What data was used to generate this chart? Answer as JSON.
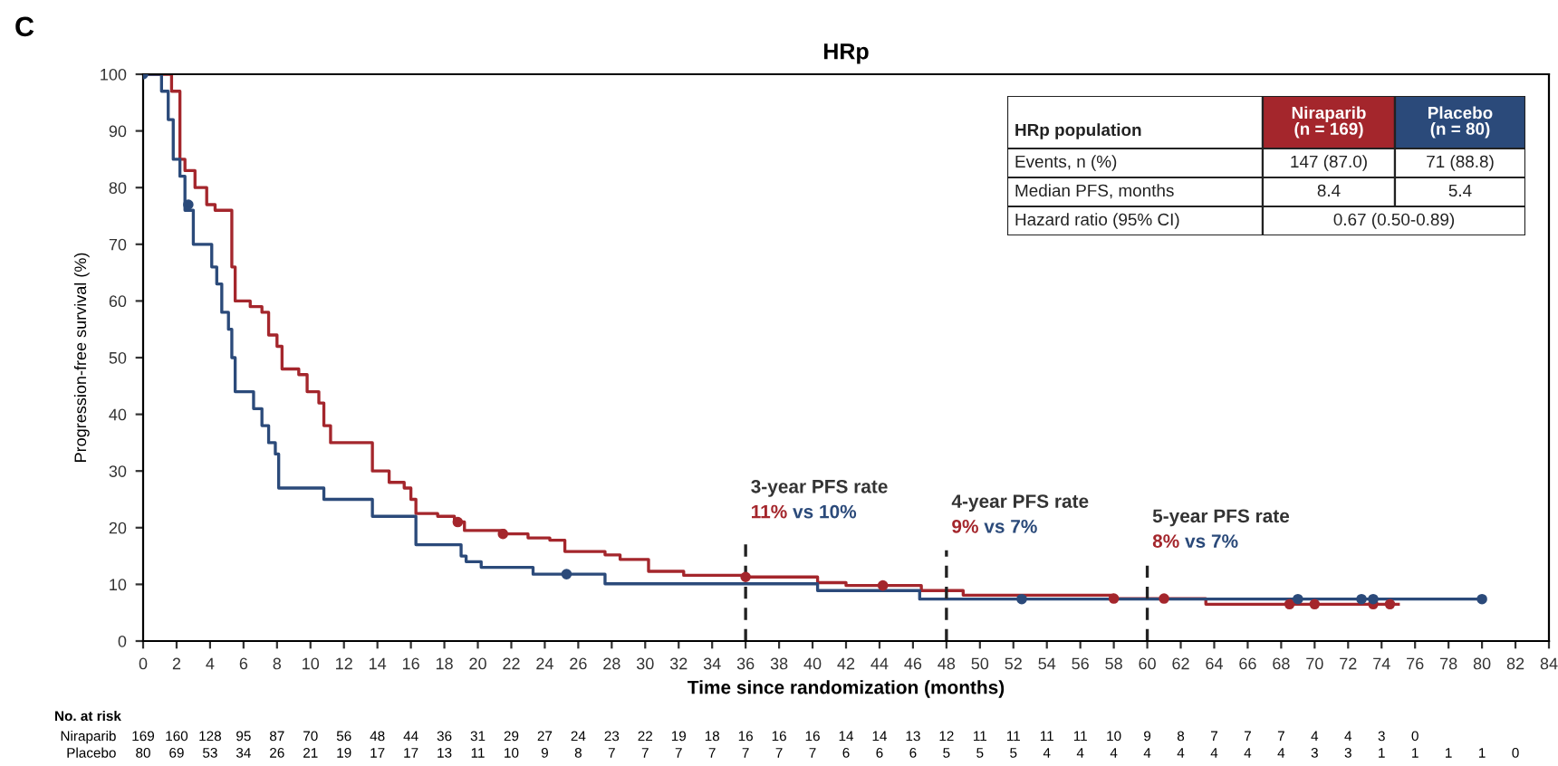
{
  "chart_data": [
    {
      "type": "step",
      "title": "HRp",
      "xlabel": "Time since randomization (months)",
      "ylabel": "Progression-free survival (%)",
      "xlim": [
        0,
        84
      ],
      "xticks": [
        0,
        2,
        4,
        6,
        8,
        10,
        12,
        14,
        16,
        18,
        20,
        22,
        24,
        26,
        28,
        30,
        32,
        34,
        36,
        38,
        40,
        42,
        44,
        46,
        48,
        50,
        52,
        54,
        56,
        58,
        60,
        62,
        64,
        66,
        68,
        70,
        72,
        74,
        76,
        78,
        80,
        82,
        84
      ],
      "ylim": [
        0,
        100
      ],
      "yticks": [
        0,
        10,
        20,
        30,
        40,
        50,
        60,
        70,
        80,
        90,
        100
      ],
      "series": [
        {
          "color": "#a4262c",
          "x": [
            0,
            1.7,
            2.2,
            2.5,
            3.1,
            3.8,
            4.3,
            5.1,
            5.3,
            5.5,
            6.4,
            7.1,
            7.5,
            8.0,
            8.3,
            9.3,
            9.8,
            10.5,
            10.8,
            11.2,
            13.7,
            14.7,
            15.6,
            16.0,
            16.3,
            17.6,
            18.6,
            19.2,
            21.6,
            23.0,
            24.3,
            25.2,
            27.6,
            28.5,
            30.2,
            32.3,
            36.0,
            40.3,
            42.0,
            46.5,
            49.0,
            58.0,
            63.5,
            75
          ],
          "values": [
            100,
            97,
            85,
            83,
            80,
            77,
            76,
            76,
            66,
            60,
            59,
            58,
            54,
            52,
            48,
            47,
            44,
            42,
            38,
            35,
            30,
            28,
            27,
            25,
            22.5,
            22,
            21,
            19.5,
            18.9,
            18.2,
            17.8,
            15.8,
            15.2,
            14.4,
            12.3,
            11.6,
            11.3,
            10.3,
            9.8,
            8.9,
            8.1,
            7.5,
            6.5,
            6.5
          ]
        },
        {
          "color": "#2b4a7a",
          "x": [
            0,
            1.1,
            1.5,
            1.8,
            2.2,
            2.5,
            2.7,
            3.0,
            4.1,
            4.4,
            4.7,
            5.1,
            5.3,
            5.5,
            6.6,
            7.1,
            7.5,
            7.9,
            8.1,
            10.8,
            13.7,
            16.3,
            19.0,
            19.3,
            20.2,
            23.3,
            27.6,
            40.3,
            46.4,
            80
          ],
          "values": [
            100,
            97,
            92,
            85,
            82,
            76,
            76,
            70,
            66,
            63,
            58,
            55,
            50,
            44,
            41,
            38,
            35,
            33,
            27,
            25,
            22,
            17,
            15,
            14,
            13,
            11.8,
            10.1,
            8.9,
            7.4,
            7.4
          ]
        },
        {
          "color": "#a4262c",
          "type": "scatter",
          "marker": "circle",
          "x": [
            18.8,
            21.5,
            36,
            44.2,
            58,
            61,
            68.5,
            70,
            73.5,
            74.5
          ],
          "values": [
            21,
            18.9,
            11.3,
            9.8,
            7.5,
            7.5,
            6.5,
            6.5,
            6.5,
            6.5
          ]
        },
        {
          "color": "#2b4a7a",
          "type": "scatter",
          "marker": "circle",
          "x": [
            0,
            2.7,
            25.3,
            52.5,
            69,
            72.8,
            73.5,
            80
          ],
          "values": [
            100,
            77,
            11.8,
            7.4,
            7.4,
            7.4,
            7.4,
            7.4
          ]
        }
      ],
      "ref_lines": [
        {
          "axis": "x",
          "value": 36,
          "label": "3-year PFS rate",
          "line_style": "dashed",
          "color": "#222222"
        },
        {
          "axis": "x",
          "value": 48,
          "label": "4-year PFS rate",
          "line_style": "dashed",
          "color": "#222222"
        },
        {
          "axis": "x",
          "value": 60,
          "label": "5-year PFS rate",
          "line_style": "dashed",
          "color": "#222222"
        }
      ],
      "annotations": [
        "C",
        "11%",
        "vs 10%",
        "9%",
        "vs 7%",
        "8%",
        "vs 7%"
      ]
    },
    {
      "type": "other",
      "annotations": [
        "HRp population",
        "Niraparib\n(n = 169)",
        "Placebo\n(n = 80)",
        "Events, n (%)",
        "147 (87.0)",
        "71 (88.8)",
        "Median PFS, months",
        "8.4",
        "5.4",
        "Hazard ratio (95% CI)",
        "0.67 (0.50-0.89)"
      ]
    },
    {
      "type": "heatmap",
      "title": "No. at risk",
      "categories": [
        null,
        null,
        null,
        null,
        null,
        null,
        null,
        null,
        null,
        null,
        null,
        null,
        null,
        null,
        null,
        null,
        null,
        null,
        null,
        null,
        null,
        null,
        null,
        null,
        null,
        null,
        null,
        null,
        null,
        null,
        null,
        null,
        null,
        null,
        null,
        null,
        null,
        null,
        null,
        null,
        null,
        null
      ],
      "y_categories": [
        "Niraparib",
        "Placebo"
      ],
      "data_labels": true,
      "cells": [
        [
          169,
          160,
          128,
          95,
          87,
          70,
          56,
          48,
          44,
          36,
          31,
          29,
          27,
          24,
          23,
          22,
          19,
          18,
          16,
          16,
          16,
          14,
          14,
          13,
          12,
          11,
          11,
          11,
          11,
          10,
          9,
          8,
          7,
          7,
          7,
          4,
          4,
          3,
          0,
          null,
          null,
          null
        ],
        [
          80,
          69,
          53,
          34,
          26,
          21,
          19,
          17,
          17,
          13,
          11,
          10,
          9,
          8,
          7,
          7,
          7,
          7,
          7,
          7,
          7,
          6,
          6,
          6,
          5,
          5,
          5,
          4,
          4,
          4,
          4,
          4,
          4,
          4,
          4,
          3,
          3,
          1,
          1,
          1,
          1,
          0
        ]
      ]
    }
  ]
}
